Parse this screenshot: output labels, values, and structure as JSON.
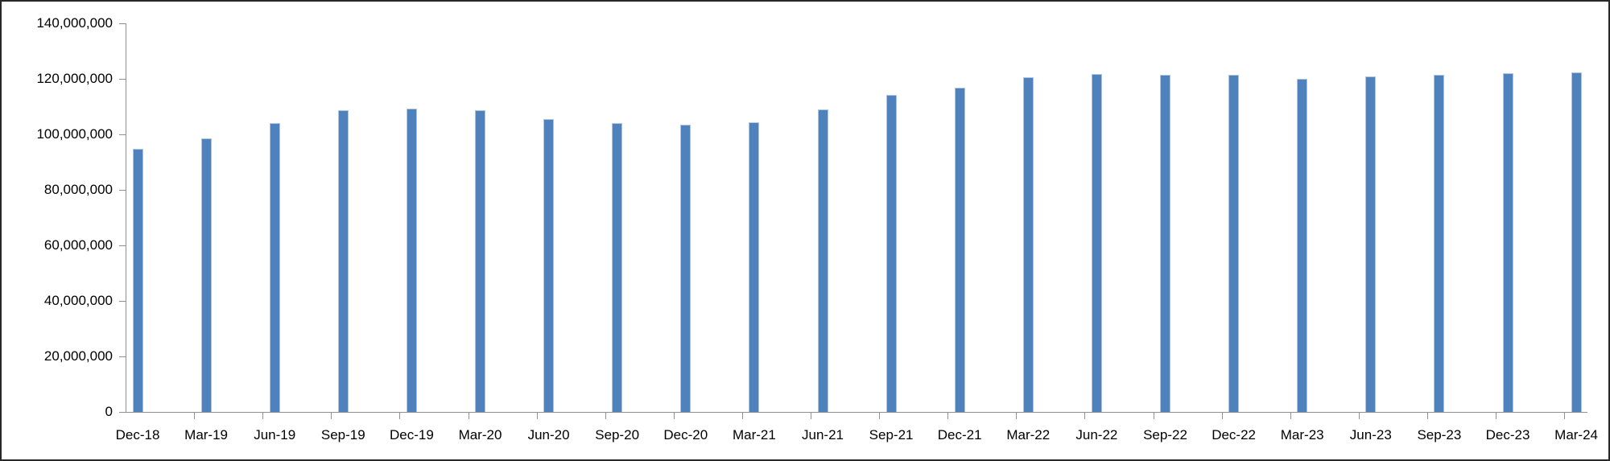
{
  "chart_data": {
    "type": "bar",
    "title": "",
    "xlabel": "",
    "ylabel": "",
    "legend": false,
    "grid": false,
    "categories": [
      "Dec-18",
      "Mar-19",
      "Jun-19",
      "Sep-19",
      "Dec-19",
      "Mar-20",
      "Jun-20",
      "Sep-20",
      "Dec-20",
      "Mar-21",
      "Jun-21",
      "Sep-21",
      "Dec-21",
      "Mar-22",
      "Jun-22",
      "Sep-22",
      "Dec-22",
      "Mar-23",
      "Jun-23",
      "Sep-23",
      "Dec-23",
      "Mar-24"
    ],
    "values": [
      94800000,
      98600000,
      104100000,
      108600000,
      109300000,
      108800000,
      105600000,
      104100000,
      103400000,
      104300000,
      109100000,
      114100000,
      116700000,
      120600000,
      121800000,
      121500000,
      121500000,
      120100000,
      120900000,
      121400000,
      122000000,
      122200000
    ],
    "y_axis": {
      "min": 0,
      "max": 140000000,
      "tick_interval": 20000000,
      "tick_labels": [
        "0",
        "20,000,000",
        "40,000,000",
        "60,000,000",
        "80,000,000",
        "100,000,000",
        "120,000,000",
        "140,000,000"
      ]
    },
    "style": {
      "bar_color": "#4F81BD",
      "bar_border_color": "#AEC5E0",
      "axis_color": "#909090",
      "text_color": "#000000",
      "frame_border_color": "#282828",
      "plot_background": "#FFFFFF"
    }
  }
}
